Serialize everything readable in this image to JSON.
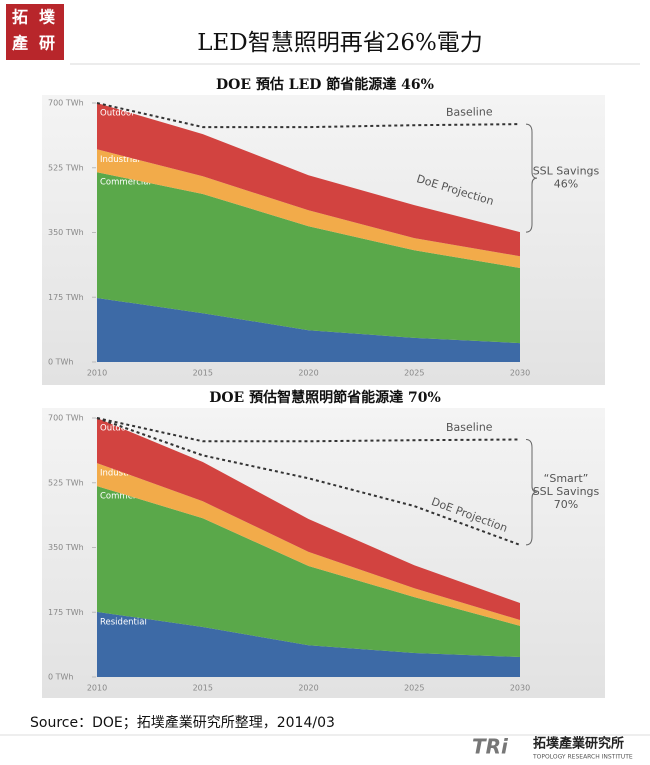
{
  "header": {
    "title": "LED智慧照明再省26%電力",
    "logo": [
      "拓",
      "墣",
      "產",
      "研"
    ]
  },
  "chart_data": [
    {
      "type": "area",
      "stacked": true,
      "title": "DOE 預估 LED 節省能源達 46%",
      "x": [
        2010,
        2015,
        2020,
        2025,
        2030
      ],
      "xlim": [
        2010,
        2030
      ],
      "xticks": [
        2010,
        2015,
        2020,
        2025,
        2030
      ],
      "ylim": [
        0,
        700
      ],
      "yticks": [
        {
          "value": 0,
          "label": "0 TWh"
        },
        {
          "value": 175,
          "label": "175 TWh"
        },
        {
          "value": 350,
          "label": "350 TWh"
        },
        {
          "value": 525,
          "label": "525 TWh"
        },
        {
          "value": 700,
          "label": "700 TWh"
        }
      ],
      "series": [
        {
          "type": "area",
          "color": "#3d6aa6",
          "values": [
            173,
            132,
            86,
            65,
            51
          ]
        },
        {
          "type": "area",
          "name": "Commercial",
          "color": "#5aa84a",
          "values": [
            340,
            322,
            281,
            237,
            203
          ]
        },
        {
          "type": "area",
          "name": "Industrial",
          "color": "#f2ab4a",
          "values": [
            62,
            48,
            43,
            33,
            32
          ]
        },
        {
          "type": "area",
          "name": "Outdoor",
          "color": "#d24340",
          "values": [
            125,
            114,
            95,
            89,
            65
          ]
        },
        {
          "type": "line",
          "name": "Baseline",
          "dashed": true,
          "color": "#333333",
          "values": [
            700,
            635,
            635,
            640,
            643
          ]
        }
      ],
      "projection_label": "DoE Projection",
      "savings_label": [
        "SSL Savings",
        "46%"
      ]
    },
    {
      "type": "area",
      "stacked": true,
      "title": "DOE 預估智慧照明節省能源達 70%",
      "x": [
        2010,
        2015,
        2020,
        2025,
        2030
      ],
      "xlim": [
        2010,
        2030
      ],
      "xticks": [
        2010,
        2015,
        2020,
        2025,
        2030
      ],
      "ylim": [
        0,
        700
      ],
      "yticks": [
        {
          "value": 0,
          "label": "0 TWh"
        },
        {
          "value": 175,
          "label": "175 TWh"
        },
        {
          "value": 350,
          "label": "350 TWh"
        },
        {
          "value": 525,
          "label": "525 TWh"
        },
        {
          "value": 700,
          "label": "700 TWh"
        }
      ],
      "series": [
        {
          "type": "area",
          "name": "Residential",
          "color": "#3d6aa6",
          "values": [
            176,
            135,
            86,
            65,
            54
          ]
        },
        {
          "type": "area",
          "name": "Commercial",
          "color": "#5aa84a",
          "values": [
            340,
            294,
            214,
            151,
            84
          ]
        },
        {
          "type": "area",
          "name": "Industrial",
          "color": "#f2ab4a",
          "values": [
            62,
            46,
            38,
            24,
            16
          ]
        },
        {
          "type": "area",
          "name": "Outdoor",
          "color": "#d24340",
          "values": [
            122,
            106,
            89,
            62,
            46
          ]
        },
        {
          "type": "line",
          "name": "Baseline",
          "dashed": true,
          "color": "#333333",
          "values": [
            700,
            637,
            637,
            640,
            642
          ]
        },
        {
          "type": "line",
          "name": "DoE Projection",
          "dashed": true,
          "color": "#333333",
          "values": [
            700,
            599,
            537,
            462,
            357
          ]
        }
      ],
      "savings_label": [
        "“Smart”",
        "SSL Savings",
        "70%"
      ]
    }
  ],
  "footer": {
    "source": "Source：DOE；拓墣產業研究所整理，2014/03",
    "brand": "TRi",
    "brand_cn": "拓墣產業研究所",
    "brand_en": "TOPOLOGY RESEARCH INSTITUTE"
  }
}
